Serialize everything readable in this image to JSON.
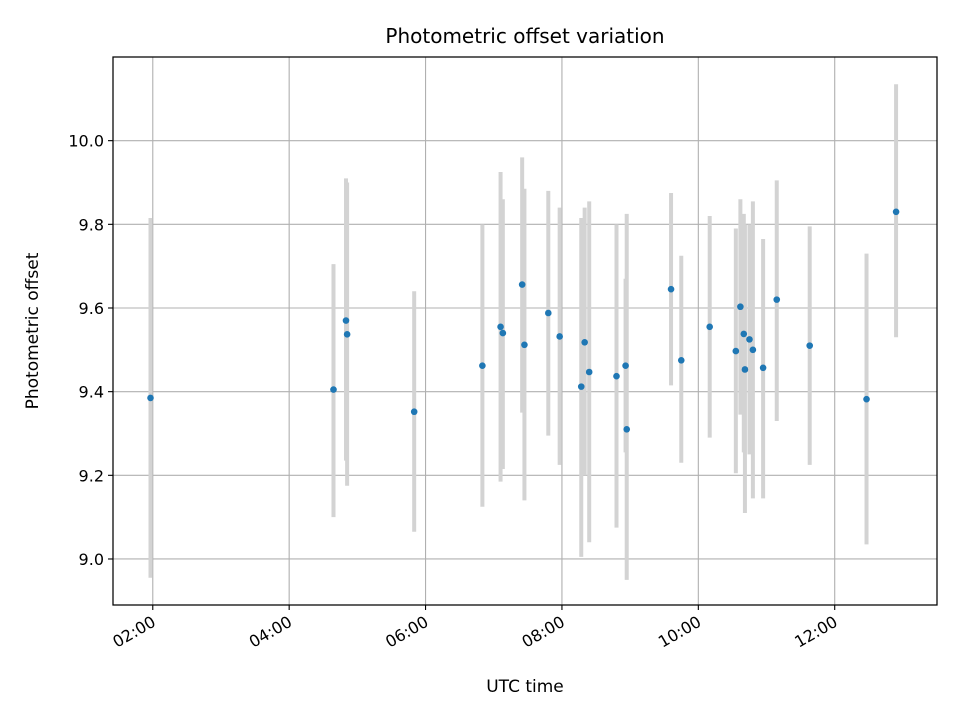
{
  "chart_data": {
    "type": "scatter",
    "title": "Photometric offset variation",
    "xlabel": "UTC time",
    "ylabel": "Photometric offset",
    "xlim": [
      "01:25",
      "13:30"
    ],
    "ylim": [
      8.89,
      10.2
    ],
    "x_ticks": [
      "02:00",
      "04:00",
      "06:00",
      "08:00",
      "10:00",
      "12:00"
    ],
    "y_ticks": [
      9.0,
      9.2,
      9.4,
      9.6,
      9.8,
      10.0
    ],
    "y_tick_labels": [
      "9.0",
      "9.2",
      "9.4",
      "9.6",
      "9.8",
      "10.0"
    ],
    "grid": true,
    "colors": {
      "marker": "#1f77b4",
      "errorbar": "#d3d3d3",
      "grid": "#b0b0b0"
    },
    "series": [
      {
        "points": [
          {
            "t": "01:58",
            "y": 9.385,
            "lo": 8.955,
            "hi": 9.815
          },
          {
            "t": "04:39",
            "y": 9.405,
            "lo": 9.1,
            "hi": 9.705
          },
          {
            "t": "04:50",
            "y": 9.57,
            "lo": 9.235,
            "hi": 9.91
          },
          {
            "t": "04:51",
            "y": 9.537,
            "lo": 9.175,
            "hi": 9.9
          },
          {
            "t": "05:50",
            "y": 9.352,
            "lo": 9.065,
            "hi": 9.64
          },
          {
            "t": "06:50",
            "y": 9.462,
            "lo": 9.125,
            "hi": 9.8
          },
          {
            "t": "07:06",
            "y": 9.555,
            "lo": 9.185,
            "hi": 9.925
          },
          {
            "t": "07:08",
            "y": 9.54,
            "lo": 9.215,
            "hi": 9.86
          },
          {
            "t": "07:25",
            "y": 9.656,
            "lo": 9.35,
            "hi": 9.96
          },
          {
            "t": "07:27",
            "y": 9.512,
            "lo": 9.14,
            "hi": 9.885
          },
          {
            "t": "07:48",
            "y": 9.588,
            "lo": 9.295,
            "hi": 9.88
          },
          {
            "t": "07:58",
            "y": 9.532,
            "lo": 9.225,
            "hi": 9.84
          },
          {
            "t": "08:17",
            "y": 9.412,
            "lo": 9.005,
            "hi": 9.815
          },
          {
            "t": "08:20",
            "y": 9.518,
            "lo": 9.2,
            "hi": 9.84
          },
          {
            "t": "08:24",
            "y": 9.447,
            "lo": 9.04,
            "hi": 9.855
          },
          {
            "t": "08:48",
            "y": 9.437,
            "lo": 9.075,
            "hi": 9.8
          },
          {
            "t": "08:56",
            "y": 9.462,
            "lo": 9.255,
            "hi": 9.67
          },
          {
            "t": "08:57",
            "y": 9.31,
            "lo": 8.95,
            "hi": 9.825
          },
          {
            "t": "09:36",
            "y": 9.645,
            "lo": 9.415,
            "hi": 9.875
          },
          {
            "t": "09:45",
            "y": 9.475,
            "lo": 9.23,
            "hi": 9.725
          },
          {
            "t": "10:10",
            "y": 9.555,
            "lo": 9.29,
            "hi": 9.82
          },
          {
            "t": "10:33",
            "y": 9.497,
            "lo": 9.205,
            "hi": 9.79
          },
          {
            "t": "10:37",
            "y": 9.603,
            "lo": 9.345,
            "hi": 9.86
          },
          {
            "t": "10:40",
            "y": 9.538,
            "lo": 9.255,
            "hi": 9.825
          },
          {
            "t": "10:41",
            "y": 9.453,
            "lo": 9.11,
            "hi": 9.8
          },
          {
            "t": "10:45",
            "y": 9.525,
            "lo": 9.25,
            "hi": 9.8
          },
          {
            "t": "10:48",
            "y": 9.5,
            "lo": 9.145,
            "hi": 9.855
          },
          {
            "t": "10:57",
            "y": 9.457,
            "lo": 9.145,
            "hi": 9.765
          },
          {
            "t": "11:09",
            "y": 9.62,
            "lo": 9.33,
            "hi": 9.905
          },
          {
            "t": "11:38",
            "y": 9.51,
            "lo": 9.225,
            "hi": 9.795
          },
          {
            "t": "12:28",
            "y": 9.382,
            "lo": 9.035,
            "hi": 9.73
          },
          {
            "t": "12:54",
            "y": 9.83,
            "lo": 9.53,
            "hi": 10.135
          }
        ]
      }
    ]
  }
}
